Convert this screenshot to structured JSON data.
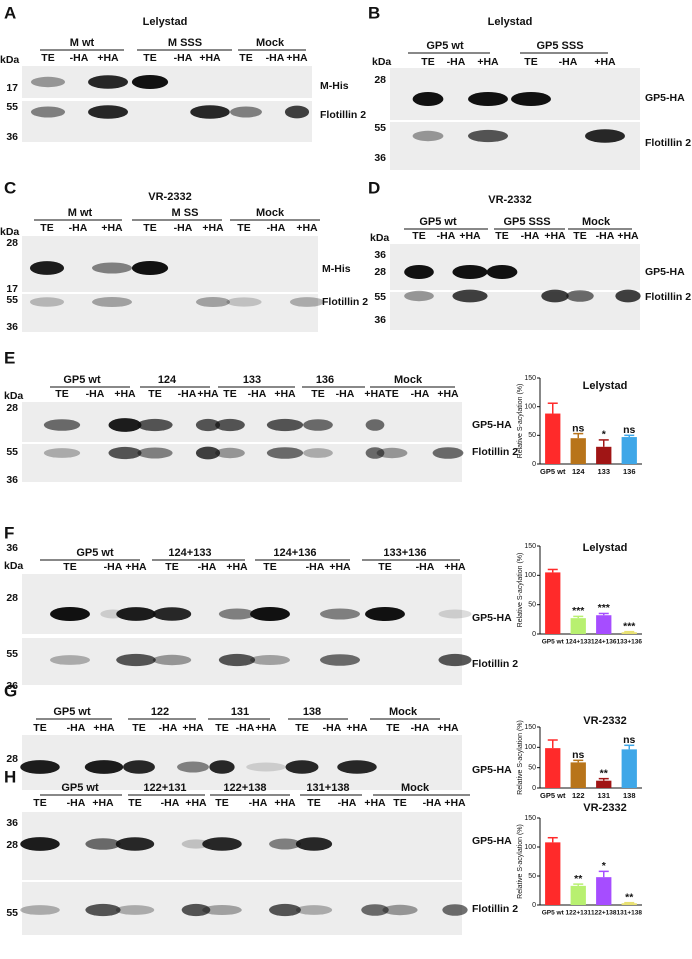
{
  "panels": [
    {
      "letter": "A",
      "title": "Lelystad",
      "unit": "kDa",
      "groups": [
        "M wt",
        "M SSS",
        "Mock"
      ],
      "lanes": [
        "TE",
        "-HA",
        "+HA",
        "TE",
        "-HA",
        "+HA",
        "TE",
        "-HA",
        "+HA"
      ],
      "markers": [
        "17",
        "55",
        "36"
      ],
      "bands": [
        "M-His",
        "Flotillin 2"
      ]
    },
    {
      "letter": "B",
      "title": "Lelystad",
      "unit": "kDa",
      "groups": [
        "GP5 wt",
        "GP5 SSS"
      ],
      "lanes": [
        "TE",
        "-HA",
        "+HA",
        "TE",
        "-HA",
        "+HA"
      ],
      "markers": [
        "28",
        "55",
        "36"
      ],
      "bands": [
        "GP5-HA",
        "Flotillin 2"
      ]
    },
    {
      "letter": "C",
      "title": "VR-2332",
      "unit": "kDa",
      "groups": [
        "M wt",
        "M SS",
        "Mock"
      ],
      "lanes": [
        "TE",
        "-HA",
        "+HA",
        "TE",
        "-HA",
        "+HA",
        "TE",
        "-HA",
        "+HA"
      ],
      "markers": [
        "28",
        "17",
        "55",
        "36"
      ],
      "bands": [
        "M-His",
        "Flotillin 2"
      ]
    },
    {
      "letter": "D",
      "title": "VR-2332",
      "unit": "kDa",
      "groups": [
        "GP5 wt",
        "GP5 SSS",
        "Mock"
      ],
      "lanes": [
        "TE",
        "-HA",
        "+HA",
        "TE",
        "-HA",
        "+HA",
        "TE",
        "-HA",
        "+HA"
      ],
      "markers": [
        "36",
        "28",
        "55",
        "36"
      ],
      "bands": [
        "GP5-HA",
        "Flotillin 2"
      ]
    },
    {
      "letter": "E",
      "unit": "kDa",
      "groups": [
        "GP5 wt",
        "124",
        "133",
        "136",
        "Mock"
      ],
      "lanes": [
        "TE",
        "-HA",
        "+HA",
        "TE",
        "-HA",
        "+HA",
        "TE",
        "-HA",
        "+HA",
        "TE",
        "-HA",
        "+HA",
        "TE",
        "-HA",
        "+HA"
      ],
      "markers": [
        "28",
        "55",
        "36"
      ],
      "bands": [
        "GP5-HA",
        "Flotillin 2"
      ]
    },
    {
      "letter": "F",
      "unit": "kDa",
      "groups": [
        "GP5 wt",
        "124+133",
        "124+136",
        "133+136"
      ],
      "lanes": [
        "TE",
        "-HA",
        "+HA",
        "TE",
        "-HA",
        "+HA",
        "TE",
        "-HA",
        "+HA",
        "TE",
        "-HA",
        "+HA"
      ],
      "markers": [
        "36",
        "28",
        "55",
        "36"
      ],
      "bands": [
        "GP5-HA",
        "Flotillin 2"
      ]
    },
    {
      "letter": "G",
      "groups": [
        "GP5 wt",
        "122",
        "131",
        "138",
        "Mock"
      ],
      "lanes": [
        "TE",
        "-HA",
        "+HA",
        "TE",
        "-HA",
        "+HA",
        "TE",
        "-HA",
        "+HA",
        "TE",
        "-HA",
        "+HA",
        "TE",
        "-HA",
        "+HA"
      ],
      "markers": [
        "28"
      ],
      "bands": [
        "GP5-HA"
      ]
    },
    {
      "letter": "H",
      "groups": [
        "GP5 wt",
        "122+131",
        "122+138",
        "131+138",
        "Mock"
      ],
      "lanes": [
        "TE",
        "-HA",
        "+HA",
        "TE",
        "-HA",
        "+HA",
        "TE",
        "-HA",
        "+HA",
        "TE",
        "-HA",
        "+HA",
        "TE",
        "-HA",
        "+HA"
      ],
      "markers": [
        "36",
        "28",
        "55"
      ],
      "bands": [
        "GP5-HA",
        "Flotillin 2"
      ]
    }
  ],
  "chart_data": [
    {
      "type": "bar",
      "title": "Lelystad",
      "ylabel": "Relative S-acylation (%)",
      "categories": [
        "GP5 wt",
        "124",
        "133",
        "136"
      ],
      "values": [
        88,
        45,
        30,
        47
      ],
      "errors": [
        18,
        8,
        12,
        3
      ],
      "annotations": [
        null,
        "ns",
        "*",
        "ns"
      ],
      "colors": [
        "#ff2a2a",
        "#b8741a",
        "#a01515",
        "#3fa7e8"
      ],
      "ylim": [
        0,
        150
      ],
      "yticks": [
        0,
        50,
        100,
        150
      ]
    },
    {
      "type": "bar",
      "title": "Lelystad",
      "ylabel": "Relative S-acylation (%)",
      "categories": [
        "GP5 wt",
        "124+133",
        "124+136",
        "133+136"
      ],
      "values": [
        105,
        27,
        32,
        3
      ],
      "errors": [
        5,
        3,
        3,
        1
      ],
      "annotations": [
        null,
        "***",
        "***",
        "***"
      ],
      "colors": [
        "#ff2a2a",
        "#b8f070",
        "#a64dff",
        "#e8e070"
      ],
      "ylim": [
        0,
        150
      ],
      "yticks": [
        0,
        50,
        100,
        150
      ]
    },
    {
      "type": "bar",
      "title": "VR-2332",
      "ylabel": "Relative S-acylation (%)",
      "categories": [
        "GP5 wt",
        "122",
        "131",
        "138"
      ],
      "values": [
        98,
        63,
        18,
        95
      ],
      "errors": [
        20,
        5,
        5,
        10
      ],
      "annotations": [
        null,
        "ns",
        "**",
        "ns"
      ],
      "colors": [
        "#ff2a2a",
        "#b8741a",
        "#a01515",
        "#3fa7e8"
      ],
      "ylim": [
        0,
        150
      ],
      "yticks": [
        0,
        50,
        100,
        150
      ]
    },
    {
      "type": "bar",
      "title": "VR-2332",
      "ylabel": "Relative S-acylation (%)",
      "categories": [
        "GP5 wt",
        "122+131",
        "122+138",
        "131+138"
      ],
      "values": [
        108,
        33,
        48,
        3
      ],
      "errors": [
        8,
        3,
        10,
        1
      ],
      "annotations": [
        null,
        "**",
        "*",
        "**"
      ],
      "colors": [
        "#ff2a2a",
        "#b8f070",
        "#a64dff",
        "#e8e070"
      ],
      "ylim": [
        0,
        150
      ],
      "yticks": [
        0,
        50,
        100,
        150
      ]
    }
  ]
}
